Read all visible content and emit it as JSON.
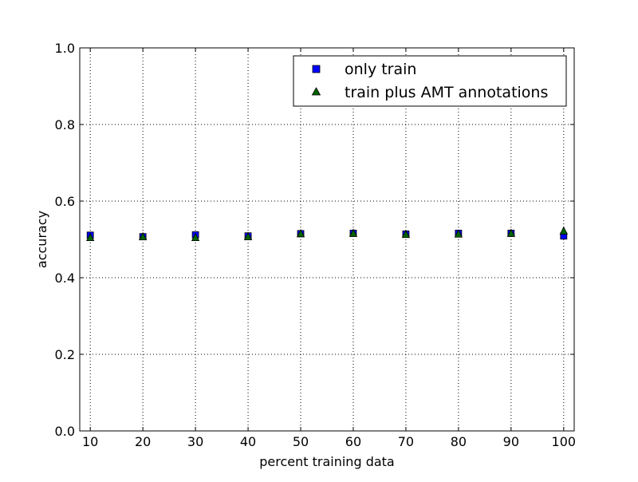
{
  "chart_data": {
    "type": "scatter",
    "title": "",
    "xlabel": "percent training data",
    "ylabel": "accuracy",
    "xlim": [
      8,
      102
    ],
    "ylim": [
      0.0,
      1.0
    ],
    "xticks": [
      10,
      20,
      30,
      40,
      50,
      60,
      70,
      80,
      90,
      100
    ],
    "xtick_labels": [
      "10",
      "20",
      "30",
      "40",
      "50",
      "60",
      "70",
      "80",
      "90",
      "100"
    ],
    "yticks": [
      0.0,
      0.2,
      0.4,
      0.6,
      0.8,
      1.0
    ],
    "ytick_labels": [
      "0.0",
      "0.2",
      "0.4",
      "0.6",
      "0.8",
      "1.0"
    ],
    "grid": true,
    "legend_position": "top-right",
    "series": [
      {
        "name": "only train",
        "marker": "square",
        "color": "#0000ff",
        "x": [
          10,
          20,
          30,
          40,
          50,
          60,
          70,
          80,
          90,
          100
        ],
        "y": [
          0.511,
          0.507,
          0.512,
          0.509,
          0.515,
          0.516,
          0.514,
          0.516,
          0.516,
          0.509
        ]
      },
      {
        "name": "train plus AMT annotations",
        "marker": "triangle",
        "color": "#006400",
        "x": [
          10,
          20,
          30,
          40,
          50,
          60,
          70,
          80,
          90,
          100
        ],
        "y": [
          0.505,
          0.507,
          0.505,
          0.507,
          0.515,
          0.516,
          0.513,
          0.514,
          0.516,
          0.522
        ]
      }
    ]
  }
}
